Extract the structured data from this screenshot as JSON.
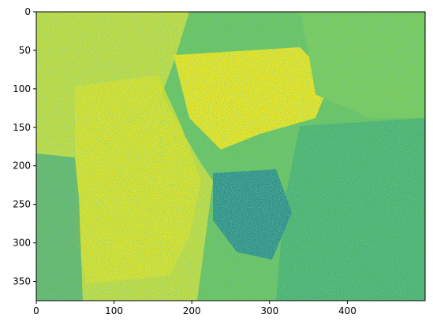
{
  "chart_data": {
    "type": "heatmap",
    "title": "",
    "xlabel": "",
    "ylabel": "",
    "colormap": "viridis",
    "image_width": 500,
    "image_height": 375,
    "xlim": [
      0,
      500
    ],
    "ylim": [
      375,
      0
    ],
    "x_ticks": [
      0,
      100,
      200,
      300,
      400
    ],
    "y_ticks": [
      0,
      50,
      100,
      150,
      200,
      250,
      300,
      350
    ],
    "grid": false,
    "legend": "none",
    "description_regions": [
      {
        "name": "left bright field",
        "value": 0.85
      },
      {
        "name": "right textured field",
        "value": 0.55
      },
      {
        "name": "central dark patch",
        "value": 0.35
      }
    ]
  },
  "colors": {
    "dark": "#3b528b",
    "mid": "#21918c",
    "light": "#5ec962",
    "bright": "#fde725",
    "axis": "#000000"
  }
}
